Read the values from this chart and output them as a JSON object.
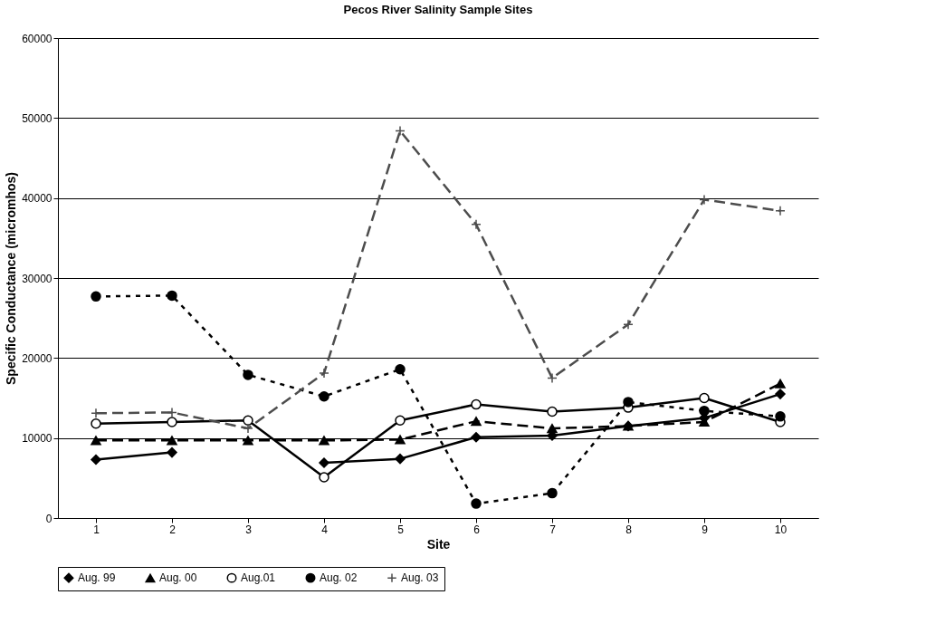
{
  "chart_data": {
    "type": "line",
    "title": "Pecos River Salinity Sample Sites",
    "xlabel": "Site",
    "ylabel": "Specific Conductance (micromhos)",
    "categories": [
      "1",
      "2",
      "3",
      "4",
      "5",
      "6",
      "7",
      "8",
      "9",
      "10"
    ],
    "series": [
      {
        "name": "Aug. 99",
        "color": "#000000",
        "marker": "diamond",
        "line_style": "solid",
        "values": [
          7300,
          8200,
          null,
          6900,
          7400,
          10100,
          10300,
          11500,
          12500,
          15500
        ]
      },
      {
        "name": "Aug. 00",
        "color": "#000000",
        "marker": "triangle",
        "line_style": "dashed",
        "values": [
          9700,
          9700,
          9700,
          9700,
          9800,
          12100,
          11200,
          11500,
          12000,
          16800
        ]
      },
      {
        "name": "Aug.01",
        "color": "#000000",
        "marker": "circle-open",
        "line_style": "solid",
        "values": [
          11800,
          12000,
          12200,
          5100,
          12200,
          14200,
          13300,
          13800,
          15000,
          12000
        ]
      },
      {
        "name": "Aug. 02",
        "color": "#000000",
        "marker": "circle",
        "line_style": "dotted",
        "values": [
          27700,
          27800,
          17900,
          15200,
          18600,
          1800,
          3100,
          14500,
          13400,
          12700
        ]
      },
      {
        "name": "Aug. 03",
        "color": "#4d4d4d",
        "marker": "cross",
        "line_style": "dashed",
        "values": [
          13100,
          13200,
          11200,
          18100,
          48400,
          36700,
          17500,
          24200,
          39800,
          38400
        ]
      }
    ],
    "ylim": [
      0,
      60000
    ],
    "yticks": [
      0,
      10000,
      20000,
      30000,
      40000,
      50000,
      60000
    ],
    "grid": "y",
    "legend": "bottom"
  }
}
